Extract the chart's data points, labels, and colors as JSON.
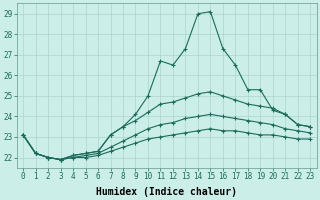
{
  "xlabel": "Humidex (Indice chaleur)",
  "ylabel": "",
  "background_color": "#cceee8",
  "grid_color": "#aad4ce",
  "line_color": "#1a6b5a",
  "xlim": [
    -0.5,
    23.5
  ],
  "ylim": [
    21.5,
    29.5
  ],
  "yticks": [
    22,
    23,
    24,
    25,
    26,
    27,
    28,
    29
  ],
  "xticks": [
    0,
    1,
    2,
    3,
    4,
    5,
    6,
    7,
    8,
    9,
    10,
    11,
    12,
    13,
    14,
    15,
    16,
    17,
    18,
    19,
    20,
    21,
    22,
    23
  ],
  "series": [
    [
      23.1,
      22.2,
      22.0,
      21.9,
      22.1,
      22.2,
      22.3,
      23.1,
      23.5,
      24.1,
      25.0,
      26.7,
      26.5,
      27.3,
      29.0,
      29.1,
      27.3,
      26.5,
      25.3,
      25.3,
      24.3,
      24.1,
      23.6,
      23.5
    ],
    [
      23.1,
      22.2,
      22.0,
      21.9,
      22.1,
      22.2,
      22.3,
      23.1,
      23.5,
      23.8,
      24.2,
      24.6,
      24.7,
      24.9,
      25.1,
      25.2,
      25.0,
      24.8,
      24.6,
      24.5,
      24.4,
      24.1,
      23.6,
      23.5
    ],
    [
      23.1,
      22.2,
      22.0,
      21.9,
      22.0,
      22.1,
      22.2,
      22.5,
      22.8,
      23.1,
      23.4,
      23.6,
      23.7,
      23.9,
      24.0,
      24.1,
      24.0,
      23.9,
      23.8,
      23.7,
      23.6,
      23.4,
      23.3,
      23.2
    ],
    [
      23.1,
      22.2,
      22.0,
      21.9,
      22.0,
      22.0,
      22.1,
      22.3,
      22.5,
      22.7,
      22.9,
      23.0,
      23.1,
      23.2,
      23.3,
      23.4,
      23.3,
      23.3,
      23.2,
      23.1,
      23.1,
      23.0,
      22.9,
      22.9
    ]
  ],
  "tick_fontsize": 5.5,
  "xlabel_fontsize": 7,
  "xlabel_fontweight": "bold"
}
